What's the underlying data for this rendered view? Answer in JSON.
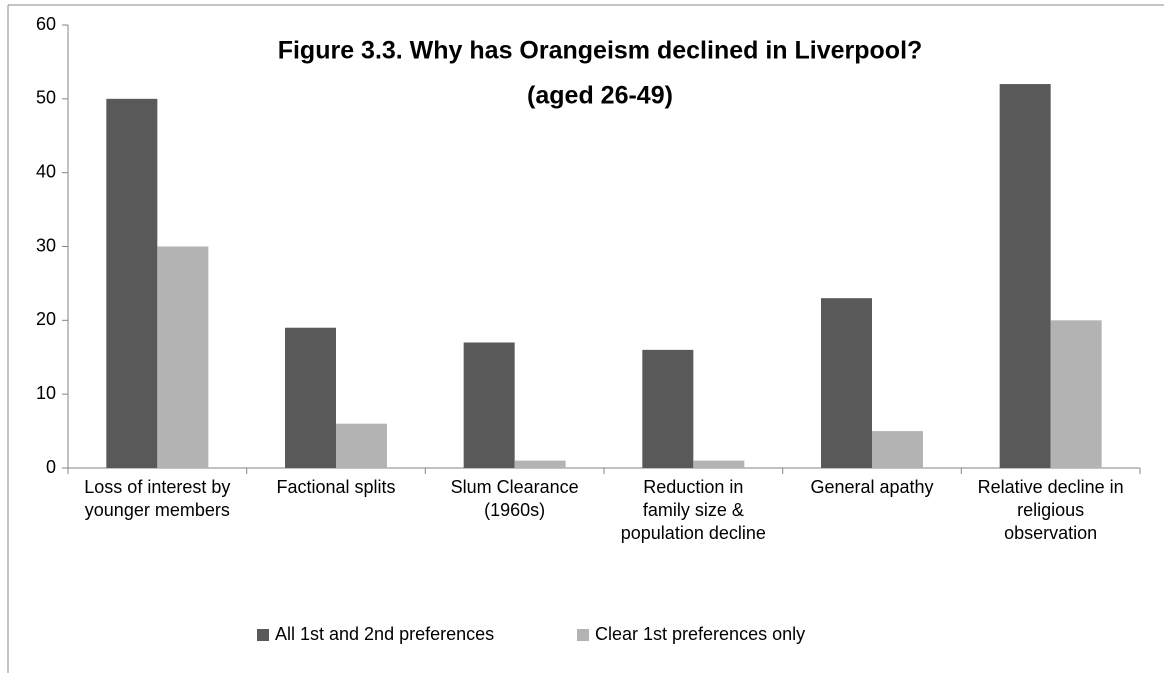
{
  "chart_data": {
    "type": "bar",
    "title": [
      "Figure 3.3. Why has Orangeism declined in Liverpool?",
      "(aged 26-49)"
    ],
    "categories": [
      "Loss of interest by younger members",
      "Factional splits",
      "Slum Clearance (1960s)",
      "Reduction in family size & population decline",
      "General apathy",
      "Relative decline in religious observation"
    ],
    "series": [
      {
        "name": "All 1st and 2nd preferences",
        "color": "#595959",
        "values": [
          50,
          19,
          17,
          16,
          23,
          52
        ]
      },
      {
        "name": "Clear 1st preferences only",
        "color": "#b3b3b3",
        "values": [
          30,
          6,
          1,
          1,
          5,
          20
        ]
      }
    ],
    "ylim": [
      0,
      60
    ],
    "yticks": [
      0,
      10,
      20,
      30,
      40,
      50,
      60
    ],
    "grid": false,
    "legend": "bottom"
  }
}
